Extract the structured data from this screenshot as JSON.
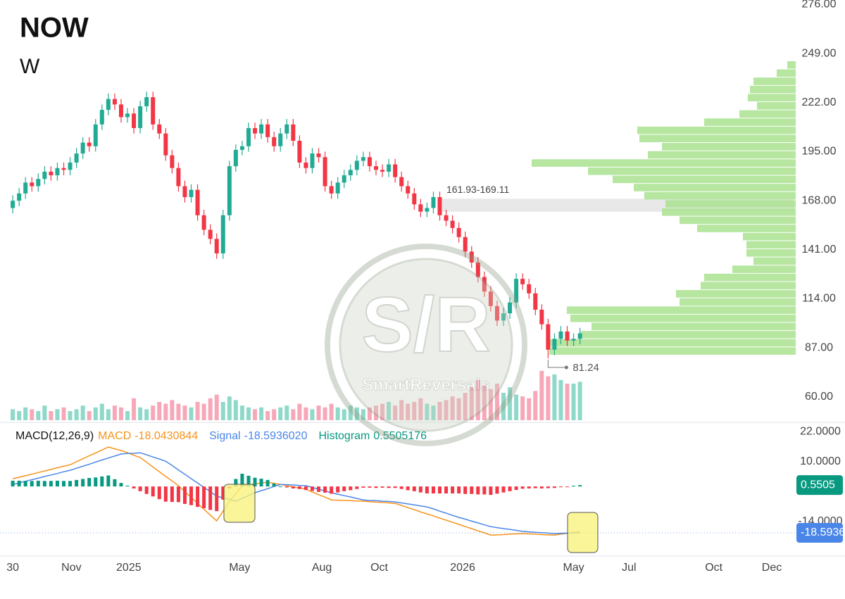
{
  "chart_data": [
    {
      "type": "candlestick",
      "title": "NOW",
      "subtitle": "W",
      "open": [
        164,
        168,
        172,
        178,
        176,
        180,
        184,
        182,
        186,
        185,
        189,
        194,
        200,
        198,
        210,
        218,
        224,
        221,
        214,
        216,
        208,
        220,
        225,
        210,
        205,
        193,
        186,
        176,
        170,
        174,
        160,
        152,
        147,
        139,
        160,
        187,
        196,
        198,
        208,
        205,
        210,
        203,
        198,
        205,
        210,
        201,
        189,
        186,
        194,
        192,
        176,
        172,
        178,
        182,
        185,
        190,
        192,
        187,
        185,
        184,
        188,
        181,
        176,
        172,
        166,
        162,
        164,
        170,
        160,
        157,
        153,
        148,
        140,
        134,
        126,
        118,
        110,
        102,
        106,
        112,
        125,
        122,
        117,
        108,
        100,
        86,
        92,
        96,
        91,
        92
      ],
      "high": [
        171,
        175,
        181,
        181,
        183,
        187,
        187,
        189,
        189,
        192,
        197,
        203,
        203,
        213,
        221,
        227,
        227,
        224,
        219,
        219,
        223,
        228,
        228,
        213,
        208,
        196,
        189,
        179,
        177,
        177,
        163,
        155,
        150,
        163,
        190,
        199,
        201,
        211,
        211,
        213,
        213,
        206,
        208,
        213,
        213,
        204,
        192,
        197,
        197,
        195,
        179,
        181,
        185,
        188,
        193,
        195,
        195,
        190,
        188,
        191,
        191,
        184,
        179,
        175,
        169,
        167,
        173,
        173,
        163,
        160,
        156,
        151,
        143,
        137,
        129,
        121,
        113,
        109,
        115,
        128,
        128,
        125,
        120,
        111,
        103,
        95,
        99,
        99,
        95,
        98
      ],
      "low": [
        161,
        165,
        169,
        173,
        173,
        177,
        179,
        179,
        182,
        182,
        186,
        191,
        195,
        195,
        207,
        215,
        218,
        211,
        211,
        205,
        205,
        217,
        207,
        202,
        190,
        183,
        173,
        167,
        167,
        157,
        149,
        144,
        136,
        136,
        157,
        184,
        193,
        195,
        202,
        202,
        200,
        195,
        195,
        202,
        198,
        186,
        183,
        183,
        189,
        173,
        169,
        169,
        175,
        179,
        182,
        187,
        184,
        182,
        181,
        181,
        178,
        173,
        169,
        163,
        159,
        159,
        161,
        157,
        154,
        150,
        145,
        137,
        131,
        123,
        115,
        107,
        99,
        99,
        103,
        109,
        119,
        114,
        105,
        97,
        81.24,
        83,
        89,
        88,
        88,
        89
      ],
      "close": [
        168,
        172,
        178,
        176,
        180,
        184,
        182,
        186,
        185,
        189,
        194,
        200,
        198,
        210,
        218,
        224,
        221,
        214,
        216,
        208,
        220,
        225,
        210,
        205,
        193,
        186,
        176,
        170,
        174,
        160,
        152,
        147,
        139,
        160,
        187,
        196,
        198,
        208,
        205,
        210,
        203,
        198,
        205,
        210,
        201,
        189,
        186,
        194,
        192,
        176,
        172,
        178,
        182,
        185,
        190,
        192,
        187,
        185,
        184,
        188,
        181,
        176,
        172,
        166,
        162,
        164,
        170,
        160,
        157,
        153,
        148,
        140,
        134,
        126,
        118,
        110,
        102,
        106,
        112,
        125,
        122,
        117,
        108,
        100,
        86,
        92,
        96,
        91,
        92,
        95
      ],
      "up_color": "#22ab94",
      "down_color": "#f23645",
      "volume": [
        6,
        5,
        7,
        6,
        5,
        8,
        5,
        6,
        7,
        5,
        6,
        8,
        5,
        7,
        9,
        6,
        8,
        7,
        5,
        12,
        7,
        6,
        8,
        10,
        9,
        11,
        9,
        8,
        7,
        10,
        9,
        12,
        14,
        10,
        13,
        11,
        8,
        7,
        6,
        7,
        5,
        6,
        7,
        8,
        6,
        9,
        7,
        6,
        8,
        7,
        9,
        7,
        6,
        8,
        7,
        6,
        7,
        8,
        9,
        10,
        8,
        11,
        9,
        10,
        12,
        9,
        8,
        10,
        11,
        13,
        12,
        15,
        18,
        22,
        19,
        17,
        20,
        15,
        18,
        14,
        13,
        12,
        16,
        27,
        24,
        25,
        22,
        20,
        20,
        21
      ],
      "volume_up_color": "#8ed9c9",
      "volume_down_color": "#f7a8b8",
      "volume_profile": {
        "bins": [
          83,
          87.5,
          92,
          96.5,
          101,
          105.5,
          110,
          114.5,
          119,
          123.5,
          128,
          132.5,
          137,
          141.5,
          146,
          150.5,
          155,
          159.5,
          164,
          168.5,
          173,
          177.5,
          182,
          186.5,
          191,
          195.5,
          200,
          204.5,
          209,
          213.5,
          218,
          222.5,
          227,
          231.5,
          236,
          240.5,
          245
        ],
        "values": [
          350,
          350,
          305,
          290,
          320,
          325,
          165,
          170,
          135,
          130,
          90,
          60,
          70,
          70,
          75,
          140,
          165,
          190,
          185,
          215,
          230,
          260,
          295,
          375,
          210,
          190,
          222,
          225,
          130,
          80,
          55,
          68,
          65,
          60,
          27,
          12
        ],
        "color": "#a9e28f"
      },
      "zone": {
        "label": "161.93-169.11",
        "low": 161.93,
        "high": 169.11,
        "color": "#e8e8e8"
      },
      "watermark": {
        "title": "S/R",
        "subtitle": "SmartReversals"
      },
      "ylim": [
        46,
        278.5
      ],
      "yticks": [
        {
          "value": 276,
          "label": "276.00"
        },
        {
          "value": 249,
          "label": "249.00"
        },
        {
          "value": 222,
          "label": "222.00"
        },
        {
          "value": 195,
          "label": "195.00"
        },
        {
          "value": 168,
          "label": "168.00"
        },
        {
          "value": 141,
          "label": "141.00"
        },
        {
          "value": 114,
          "label": "114.00"
        },
        {
          "value": 87,
          "label": "87.00"
        },
        {
          "value": 60,
          "label": "60.00"
        }
      ],
      "xlim": [
        -2,
        122.3
      ],
      "xticks": [
        {
          "value": 0,
          "label": "30"
        },
        {
          "value": 9.2,
          "label": "Nov"
        },
        {
          "value": 18.2,
          "label": "2025"
        },
        {
          "value": 35.6,
          "label": "May"
        },
        {
          "value": 48.5,
          "label": "Aug"
        },
        {
          "value": 57.5,
          "label": "Oct"
        },
        {
          "value": 70.6,
          "label": "2026"
        },
        {
          "value": 88,
          "label": "May"
        },
        {
          "value": 96.7,
          "label": "Jul"
        },
        {
          "value": 110,
          "label": "Oct"
        },
        {
          "value": 119.1,
          "label": "Dec"
        }
      ],
      "grid": false
    },
    {
      "type": "macd",
      "title": "MACD(12,26,9)",
      "series": [
        {
          "name": "MACD",
          "color": "#f7931a",
          "kind": "line",
          "legend_value": {
            "value": -18.0430844,
            "label": "-18.0430844"
          },
          "values": [
            3.1,
            3.7,
            4.3,
            4.9,
            5.6,
            6.2,
            6.8,
            7.5,
            8.1,
            8.7,
            9.9,
            11.1,
            12.3,
            13.4,
            14.6,
            15.8,
            15.1,
            14.4,
            13.5,
            12.5,
            11.6,
            9.7,
            7.8,
            5.9,
            4.0,
            2.2,
            0.3,
            -2.1,
            -4.4,
            -6.8,
            -9.1,
            -11.5,
            -13.8,
            -9.9,
            -6.0,
            -2.9,
            0.3,
            0.7,
            1.0,
            1.4,
            1.7,
            1.2,
            0.8,
            0.3,
            -0.2,
            -0.6,
            -1.1,
            -2.2,
            -3.3,
            -4.3,
            -5.4,
            -5.5,
            -5.6,
            -5.7,
            -5.8,
            -5.9,
            -6.1,
            -6.3,
            -6.4,
            -6.6,
            -6.8,
            -7.6,
            -8.5,
            -9.3,
            -10.2,
            -11.0,
            -11.8,
            -12.7,
            -13.5,
            -14.4,
            -15.2,
            -16.1,
            -16.9,
            -17.8,
            -18.6,
            -19.5,
            -19.4,
            -19.3,
            -19.1,
            -19.0,
            -18.9,
            -19.0,
            -19.1,
            -19.3,
            -19.4,
            -19.5,
            -19.1,
            -18.8,
            -18.4,
            -18.0430844
          ]
        },
        {
          "name": "Signal",
          "color": "#4a86e8",
          "kind": "line",
          "legend_value": {
            "value": -18.593602,
            "label": "-18.5936020"
          },
          "badge": {
            "value": -18.593602,
            "label": "-18.5936"
          },
          "values": [
            0.8,
            1.4,
            2.1,
            2.7,
            3.3,
            4.0,
            4.6,
            5.2,
            5.9,
            6.5,
            7.3,
            8.1,
            8.9,
            9.8,
            10.6,
            11.4,
            12.2,
            13.0,
            13.2,
            13.3,
            13.5,
            12.7,
            11.8,
            11.0,
            10.1,
            8.4,
            6.6,
            4.9,
            3.1,
            1.4,
            -0.4,
            -2.1,
            -3.9,
            -4.6,
            -5.2,
            -5.9,
            -4.8,
            -3.6,
            -2.5,
            -1.7,
            -0.9,
            0.0,
            0.8,
            0.7,
            0.6,
            0.4,
            0.3,
            -0.4,
            -1.1,
            -1.8,
            -2.5,
            -3.1,
            -3.7,
            -4.2,
            -4.8,
            -5.4,
            -5.6,
            -5.7,
            -5.9,
            -6.0,
            -6.2,
            -6.6,
            -7.0,
            -7.4,
            -7.8,
            -8.2,
            -9.0,
            -9.9,
            -10.7,
            -11.6,
            -12.4,
            -13.1,
            -13.9,
            -14.6,
            -15.4,
            -16.1,
            -16.5,
            -16.9,
            -17.2,
            -17.6,
            -18.0,
            -18.2,
            -18.4,
            -18.5,
            -18.7,
            -18.9,
            -18.8,
            -18.7,
            -18.7,
            -18.593602
          ]
        },
        {
          "name": "Histogram",
          "color": "#089981",
          "kind": "bars",
          "up_color": "#089981",
          "down_color": "#f23645",
          "legend_value": {
            "value": 0.5505176,
            "label": "0.5505176"
          },
          "badge": {
            "value": 0.5505176,
            "label": "0.5505"
          },
          "values": [
            2.3,
            2.3,
            2.2,
            2.2,
            2.3,
            2.2,
            2.2,
            2.3,
            2.2,
            2.2,
            2.6,
            3.0,
            3.4,
            3.6,
            4.0,
            4.4,
            2.9,
            1.4,
            0.3,
            -0.8,
            -1.9,
            -3.0,
            -4.0,
            -5.1,
            -6.1,
            -6.2,
            -6.3,
            -7.0,
            -7.5,
            -8.2,
            -8.7,
            -9.4,
            -9.9,
            -5.3,
            -0.8,
            3.0,
            5.1,
            4.3,
            3.5,
            3.1,
            2.6,
            1.2,
            0.0,
            -0.4,
            -0.8,
            -1.0,
            -1.4,
            -1.8,
            -2.2,
            -2.5,
            -2.9,
            -2.4,
            -1.9,
            -1.5,
            -1.0,
            -0.5,
            -0.5,
            -0.6,
            -0.5,
            -0.6,
            -0.6,
            -1.0,
            -1.5,
            -1.9,
            -2.4,
            -2.8,
            -2.8,
            -2.8,
            -2.8,
            -2.8,
            -2.8,
            -3.0,
            -3.0,
            -3.2,
            -3.2,
            -3.4,
            -2.9,
            -2.4,
            -1.9,
            -1.4,
            -0.9,
            -0.8,
            -0.7,
            -0.8,
            -0.7,
            -0.6,
            -0.3,
            -0.1,
            0.3,
            0.5505176
          ]
        }
      ],
      "ylim": [
        -27.9,
        25.7
      ],
      "yticks": [
        {
          "value": 22,
          "label": "22.0000"
        },
        {
          "value": 10,
          "label": "10.0000"
        },
        {
          "value": -14,
          "label": "-14.0000"
        }
      ]
    }
  ]
}
